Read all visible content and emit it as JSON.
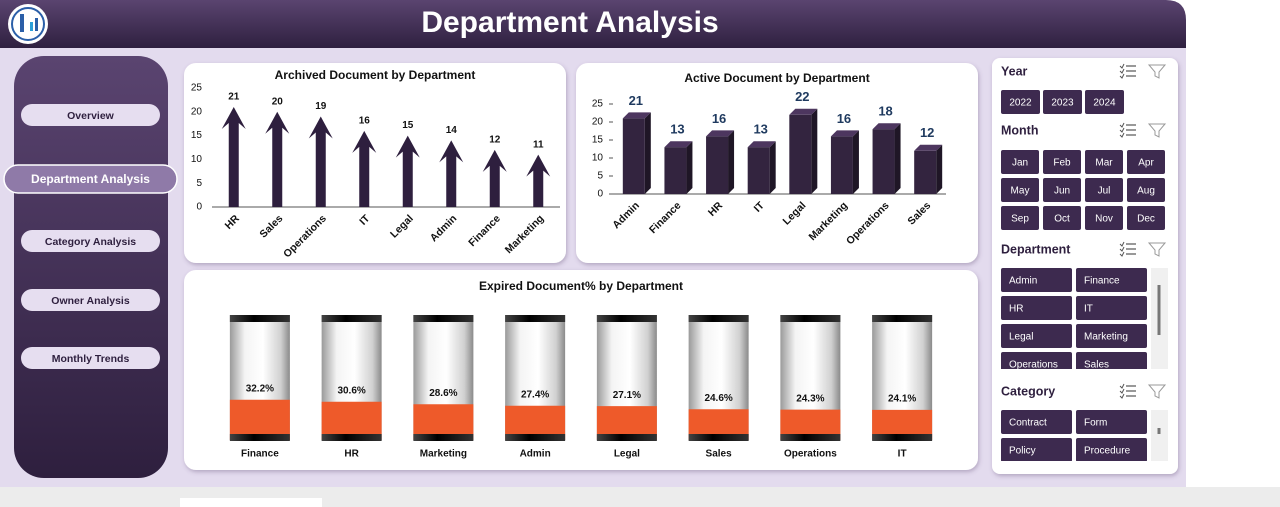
{
  "header": {
    "title": "Department Analysis"
  },
  "nav": [
    "Overview",
    "Department Analysis",
    "Category Analysis",
    "Owner Analysis",
    "Monthly Trends"
  ],
  "chart_data": [
    {
      "type": "bar",
      "title": "Archived Document by Department",
      "categories": [
        "HR",
        "Sales",
        "Operations",
        "IT",
        "Legal",
        "Admin",
        "Finance",
        "Marketing"
      ],
      "values": [
        21,
        20,
        19,
        16,
        15,
        14,
        12,
        11
      ],
      "color": "#2e1f3e",
      "ylim": [
        0,
        25
      ],
      "yticks": [
        0,
        5,
        10,
        15,
        20,
        25
      ]
    },
    {
      "type": "bar",
      "title": "Active Document by Department",
      "categories": [
        "Admin",
        "Finance",
        "HR",
        "IT",
        "Legal",
        "Marketing",
        "Operations",
        "Sales"
      ],
      "values": [
        21,
        13,
        16,
        13,
        22,
        16,
        18,
        12
      ],
      "color": "#33243f",
      "ylim": [
        0,
        25
      ],
      "yticks": [
        0,
        5,
        10,
        15,
        20,
        25
      ]
    },
    {
      "type": "bar",
      "title": "Expired Document% by Department",
      "categories": [
        "Finance",
        "HR",
        "Marketing",
        "Admin",
        "Legal",
        "Sales",
        "Operations",
        "IT"
      ],
      "values": [
        32.2,
        30.6,
        28.6,
        27.4,
        27.1,
        24.6,
        24.3,
        24.1
      ],
      "value_labels": [
        "32.2%",
        "30.6%",
        "28.6%",
        "27.4%",
        "27.1%",
        "24.6%",
        "24.3%",
        "24.1%"
      ],
      "color": "#ee5a2a",
      "ylim": [
        0,
        100
      ]
    }
  ],
  "slicers": [
    {
      "title": "Year",
      "items": [
        "2022",
        "2023",
        "2024"
      ]
    },
    {
      "title": "Month",
      "items": [
        "Jan",
        "Feb",
        "Mar",
        "Apr",
        "May",
        "Jun",
        "Jul",
        "Aug",
        "Sep",
        "Oct",
        "Nov",
        "Dec"
      ]
    },
    {
      "title": "Department",
      "items": [
        "Admin",
        "Finance",
        "HR",
        "IT",
        "Legal",
        "Marketing",
        "Operations",
        "Sales"
      ]
    },
    {
      "title": "Category",
      "items": [
        "Contract",
        "Form",
        "Policy",
        "Procedure"
      ]
    }
  ]
}
